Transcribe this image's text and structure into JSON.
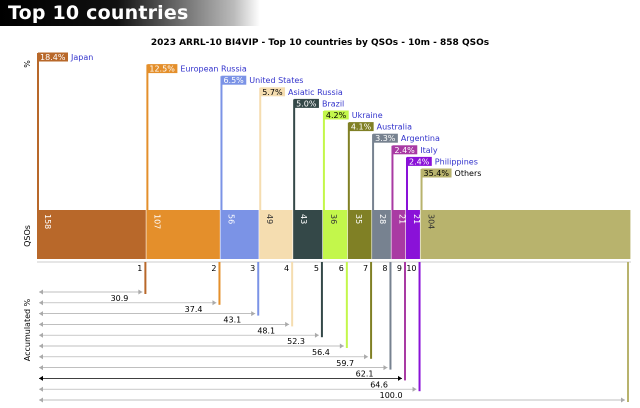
{
  "banner": {
    "title": "Top 10 countries"
  },
  "chart_data": {
    "type": "bar",
    "title": "2023 ARRL-10 BI4VIP - Top 10 countries by QSOs - 10m - 858 QSOs",
    "top_axis_label": "%",
    "middle_axis_label": "QSOs",
    "bottom_axis_label": "Accumulated %",
    "total_qsos": 858,
    "categories": [
      "Japan",
      "European Russia",
      "United States",
      "Asiatic Russia",
      "Brazil",
      "Ukraine",
      "Australia",
      "Argentina",
      "Italy",
      "Philippines",
      "Others"
    ],
    "qsos": [
      158,
      107,
      56,
      49,
      43,
      36,
      35,
      28,
      21,
      21,
      304
    ],
    "percent_labels": [
      "18.4%",
      "12.5%",
      "6.5%",
      "5.7%",
      "5.0%",
      "4.2%",
      "4.1%",
      "3.3%",
      "2.4%",
      "2.4%",
      "35.4%"
    ],
    "ranks": [
      "1",
      "2",
      "3",
      "4",
      "5",
      "6",
      "7",
      "8",
      "9",
      "10"
    ],
    "accumulated_labels": [
      "30.9",
      "37.4",
      "43.1",
      "48.1",
      "52.3",
      "56.4",
      "59.7",
      "62.1",
      "64.6",
      "100.0"
    ],
    "colors": [
      "#b8682a",
      "#e48f2b",
      "#7b93e6",
      "#f5ddb0",
      "#344848",
      "#c3f74b",
      "#808025",
      "#778290",
      "#a93aa3",
      "#8a12d8",
      "#b8b36d"
    ],
    "label_colors": [
      "#3333cc",
      "#3333cc",
      "#3333cc",
      "#3333cc",
      "#3333cc",
      "#3333cc",
      "#3333cc",
      "#3333cc",
      "#3333cc",
      "#3333cc",
      "#000000"
    ]
  }
}
